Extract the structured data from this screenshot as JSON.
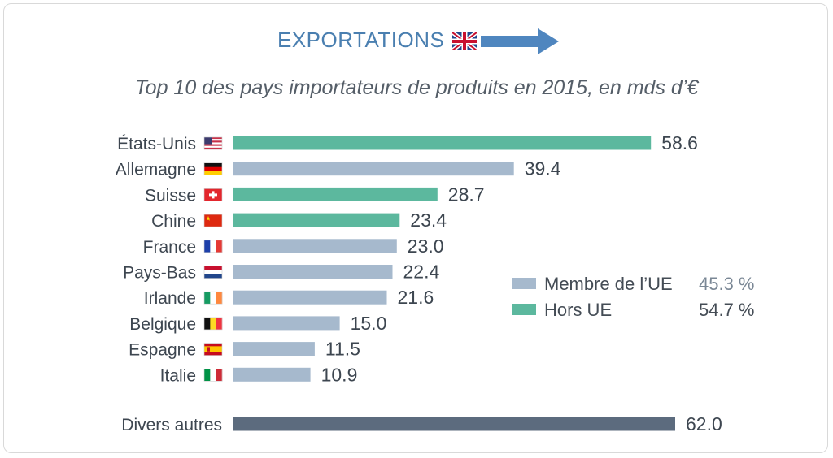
{
  "header": {
    "title": "EXPORTATIONS",
    "flag_icon": "uk-flag-icon",
    "arrow_icon": "right-arrow-icon",
    "title_color": "#4a7fb0"
  },
  "chart_data": {
    "type": "bar",
    "orientation": "horizontal",
    "title": "Top 10 des pays importateurs de produits en 2015, en mds d’€",
    "categories": [
      "États-Unis",
      "Allemagne",
      "Suisse",
      "Chine",
      "France",
      "Pays-Bas",
      "Irlande",
      "Belgique",
      "Espagne",
      "Italie",
      "Divers autres"
    ],
    "values": [
      58.6,
      39.4,
      28.7,
      23.4,
      23.0,
      22.4,
      21.6,
      15.0,
      11.5,
      10.9,
      62.0
    ],
    "value_labels": [
      "58.6",
      "39.4",
      "28.7",
      "23.4",
      "23.0",
      "22.4",
      "21.6",
      "15.0",
      "11.5",
      "10.9",
      "62.0"
    ],
    "groups": [
      "non-eu",
      "eu",
      "non-eu",
      "non-eu",
      "eu",
      "eu",
      "eu",
      "eu",
      "eu",
      "eu",
      "other"
    ],
    "flag_icons": [
      "us-flag-icon",
      "germany-flag-icon",
      "switzerland-flag-icon",
      "china-flag-icon",
      "france-flag-icon",
      "netherlands-flag-icon",
      "ireland-flag-icon",
      "belgium-flag-icon",
      "spain-flag-icon",
      "italy-flag-icon",
      ""
    ],
    "xlim": [
      0,
      62
    ],
    "grid": false,
    "legend": {
      "placement": "right",
      "items": [
        {
          "label": "Membre de l’UE",
          "percent": "45.3 %",
          "color": "#a6b9cd",
          "percent_color": "#7a8795"
        },
        {
          "label": "Hors UE",
          "percent": "54.7 %",
          "color": "#5cb89e",
          "percent_color": "#444c55"
        }
      ]
    },
    "colors": {
      "eu": "#a6b9cd",
      "non-eu": "#5cb89e",
      "other": "#5c6b7e"
    }
  }
}
